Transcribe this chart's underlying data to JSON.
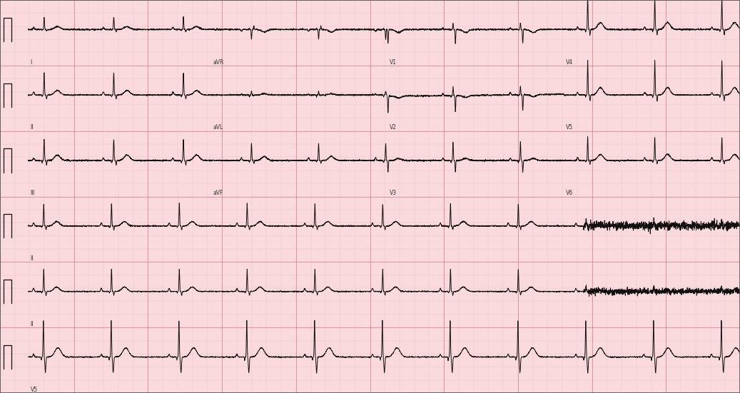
{
  "bg_color": "#fadadd",
  "grid_major_color": "#d4888a",
  "grid_minor_color": "#eebbbb",
  "line_color": "#111111",
  "line_width": 0.7,
  "fig_width": 10.37,
  "fig_height": 5.51,
  "rows": 6,
  "labels_row0": [
    "I",
    "aVR",
    "V1",
    "V4"
  ],
  "labels_row1": [
    "II",
    "aVL",
    "V2",
    "V5"
  ],
  "labels_row2": [
    "III",
    "aVF",
    "V3",
    "V6"
  ],
  "labels_row3": [
    "II"
  ],
  "labels_row4": [
    "II"
  ],
  "labels_row5": [
    "V5"
  ],
  "seg_bounds": [
    0.038,
    0.285,
    0.523,
    0.762,
    1.0
  ]
}
